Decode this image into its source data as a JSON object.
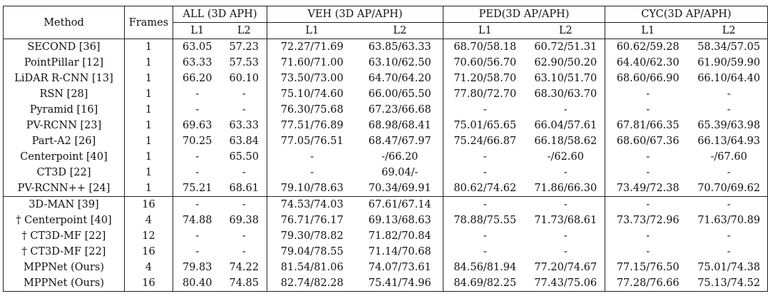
{
  "table": {
    "headers": {
      "method": "Method",
      "frames": "Frames",
      "groups": [
        "ALL (3D APH)",
        "VEH (3D AP/APH)",
        "PED(3D AP/APH)",
        "CYC(3D AP/APH)"
      ],
      "levels": [
        "L1",
        "L2",
        "L1",
        "L2",
        "L1",
        "L2",
        "L1",
        "L2"
      ]
    },
    "rows": [
      {
        "method": "SECOND [36]",
        "frames": "1",
        "cells": [
          "63.05",
          "57.23",
          "72.27/71.69",
          "63.85/63.33",
          "68.70/58.18",
          "60.72/51.31",
          "60.62/59.28",
          "58.34/57.05"
        ]
      },
      {
        "method": "PointPillar [12]",
        "frames": "1",
        "cells": [
          "63.33",
          "57.53",
          "71.60/71.00",
          "63.10/62.50",
          "70.60/56.70",
          "62.90/50.20",
          "64.40/62.30",
          "61.90/59.90"
        ]
      },
      {
        "method": "LiDAR R-CNN [13]",
        "frames": "1",
        "cells": [
          "66.20",
          "60.10",
          "73.50/73.00",
          "64.70/64.20",
          "71.20/58.70",
          "63.10/51.70",
          "68.60/66.90",
          "66.10/64.40"
        ]
      },
      {
        "method": "RSN [28]",
        "frames": "1",
        "cells": [
          "-",
          "-",
          "75.10/74.60",
          "66.00/65.50",
          "77.80/72.70",
          "68.30/63.70",
          "-",
          "-"
        ]
      },
      {
        "method": "Pyramid [16]",
        "frames": "1",
        "cells": [
          "-",
          "-",
          "76.30/75.68",
          "67.23/66.68",
          "-",
          "-",
          "-",
          "-"
        ]
      },
      {
        "method": "PV-RCNN [23]",
        "frames": "1",
        "cells": [
          "69.63",
          "63.33",
          "77.51/76.89",
          "68.98/68.41",
          "75.01/65.65",
          "66.04/57.61",
          "67.81/66.35",
          "65.39/63.98"
        ]
      },
      {
        "method": "Part-A2 [26]",
        "frames": "1",
        "cells": [
          "70.25",
          "63.84",
          "77.05/76.51",
          "68.47/67.97",
          "75.24/66.87",
          "66.18/58.62",
          "68.60/67.36",
          "66.13/64.93"
        ]
      },
      {
        "method": "Centerpoint [40]",
        "frames": "1",
        "cells": [
          "-",
          "65.50",
          "-",
          "-/66.20",
          "-",
          "-/62.60",
          "-",
          "-/67.60"
        ]
      },
      {
        "method": "CT3D [22]",
        "frames": "1",
        "cells": [
          "-",
          "-",
          "-",
          "69.04/-",
          "-",
          "-",
          "-",
          "-"
        ]
      },
      {
        "method": "PV-RCNN++ [24]",
        "frames": "1",
        "cells": [
          "75.21",
          "68.61",
          "79.10/78.63",
          "70.34/69.91",
          "80.62/74.62",
          "71.86/66.30",
          "73.49/72.38",
          "70.70/69.62"
        ]
      },
      {
        "method": "3D-MAN [39]",
        "frames": "16",
        "cells": [
          "-",
          "-",
          "74.53/74.03",
          "67.61/67.14",
          "-",
          "-",
          "-",
          "-"
        ]
      },
      {
        "method": "† Centerpoint [40]",
        "frames": "4",
        "cells": [
          "74.88",
          "69.38",
          "76.71/76.17",
          "69.13/68.63",
          "78.88/75.55",
          "71.73/68.61",
          "73.73/72.96",
          "71.63/70.89"
        ]
      },
      {
        "method": "† CT3D-MF [22]",
        "frames": "12",
        "cells": [
          "-",
          "-",
          "79.30/78.82",
          "71.82/70.84",
          "-",
          "-",
          "-",
          "-"
        ]
      },
      {
        "method": "† CT3D-MF [22]",
        "frames": "16",
        "cells": [
          "-",
          "-",
          "79.04/78.55",
          "71.14/70.68",
          "-",
          "-",
          "-",
          "-"
        ]
      },
      {
        "method": "MPPNet (Ours)",
        "frames": "4",
        "cells": [
          "79.83",
          "74.22",
          "81.54/81.06",
          "74.07/73.61",
          "84.56/81.94",
          "77.20/74.67",
          "77.15/76.50",
          "75.01/74.38"
        ]
      },
      {
        "method": "MPPNet (Ours)",
        "frames": "16",
        "cells": [
          "80.40",
          "74.85",
          "82.74/82.28",
          "75.41/74.96",
          "84.69/82.25",
          "77.43/75.06",
          "77.28/76.66",
          "75.13/74.52"
        ]
      }
    ]
  }
}
